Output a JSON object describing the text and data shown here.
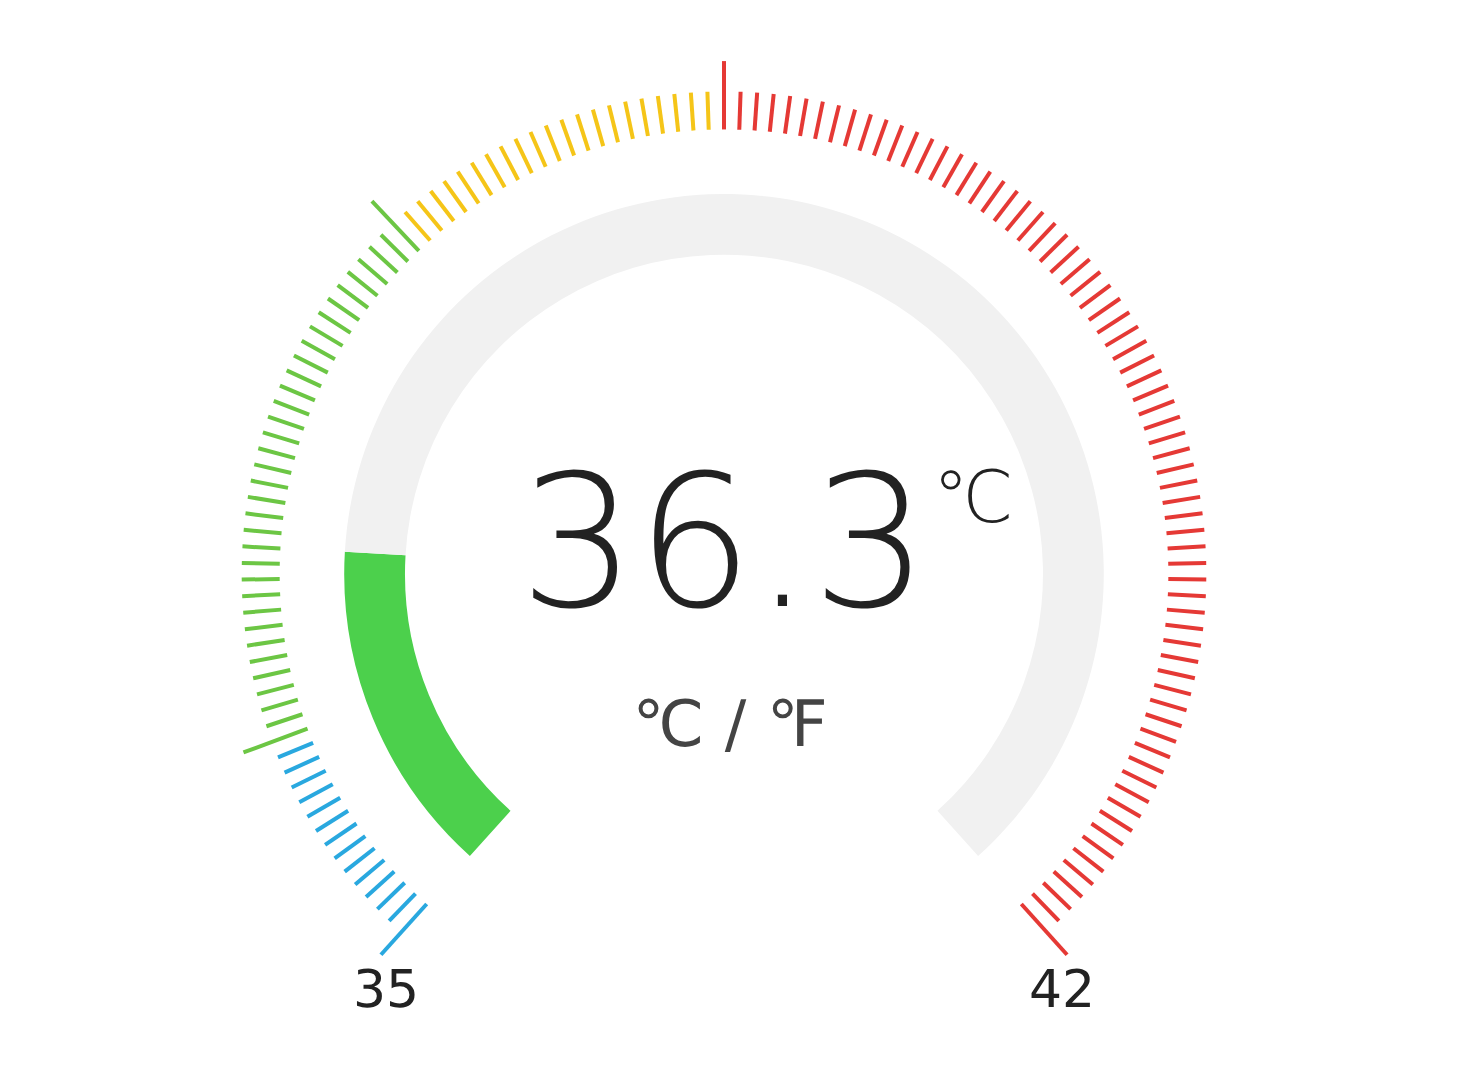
{
  "chart_data": {
    "type": "donut",
    "categories": [
      null,
      null
    ],
    "values": [
      18.6,
      81.4
    ],
    "colors": [
      "#4cd04c",
      "#f1f1f1"
    ],
    "annotations": [
      "36.3",
      "℃",
      "℃ / ℉",
      "35",
      "42"
    ]
  }
}
